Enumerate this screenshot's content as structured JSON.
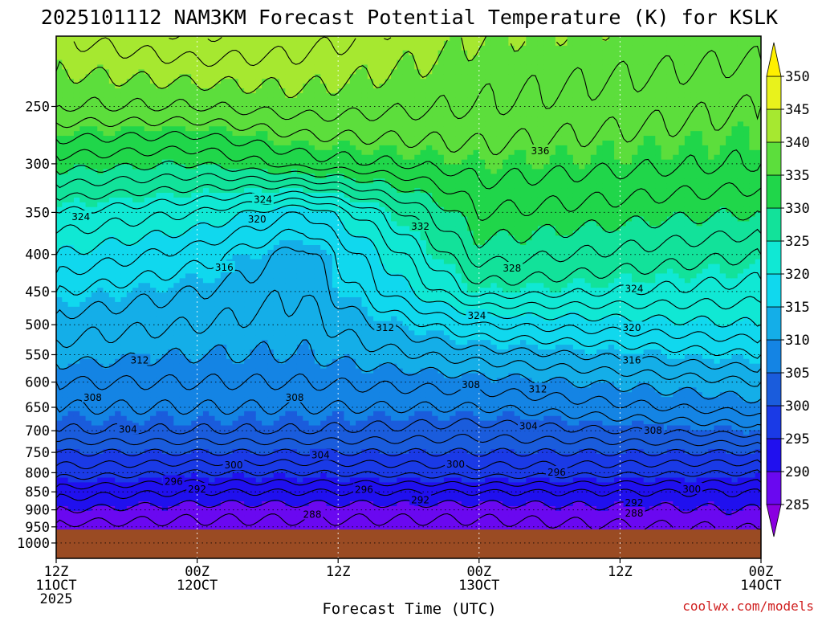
{
  "chart_data": {
    "type": "heatmap",
    "title": "2025101112 NAM3KM Forecast Potential Temperature (K) for KSLK",
    "xlabel": "Forecast Time (UTC)",
    "x_ticks": [
      {
        "hour": 0,
        "line1": "12Z",
        "line2": "11OCT",
        "line3": "2025"
      },
      {
        "hour": 12,
        "line1": "00Z",
        "line2": "12OCT",
        "line3": ""
      },
      {
        "hour": 24,
        "line1": "12Z",
        "line2": "",
        "line3": ""
      },
      {
        "hour": 36,
        "line1": "00Z",
        "line2": "13OCT",
        "line3": ""
      },
      {
        "hour": 48,
        "line1": "12Z",
        "line2": "",
        "line3": ""
      },
      {
        "hour": 60,
        "line1": "00Z",
        "line2": "14OCT",
        "line3": ""
      }
    ],
    "x_range_hours": [
      0,
      60
    ],
    "y_ticks": [
      250,
      300,
      350,
      400,
      450,
      500,
      550,
      600,
      650,
      700,
      750,
      800,
      850,
      900,
      950,
      1000
    ],
    "y_range_hpa": [
      200,
      1050
    ],
    "y_scale": "log-pressure",
    "surface_pressure_hpa": 958,
    "surface_color": "#9a4b23",
    "grid": "dotted",
    "colorbar": {
      "levels": [
        285,
        290,
        295,
        300,
        305,
        310,
        315,
        320,
        325,
        330,
        335,
        340,
        345,
        350
      ],
      "colors": [
        "#8a00e0",
        "#6a08f0",
        "#2010ee",
        "#1a3ae6",
        "#1a5cdc",
        "#1484e4",
        "#14aee8",
        "#10d8ee",
        "#10e8d4",
        "#12e29a",
        "#20d64a",
        "#5cde3c",
        "#a6e830",
        "#e8f21c",
        "#fff000"
      ],
      "tick_labels": [
        "285",
        "290",
        "295",
        "300",
        "305",
        "310",
        "315",
        "320",
        "325",
        "330",
        "335",
        "340",
        "345",
        "350"
      ]
    },
    "profiles": [
      {
        "hour": 0,
        "pressure_hpa": [
          958,
          900,
          850,
          800,
          750,
          700,
          650,
          600,
          550,
          500,
          450,
          400,
          350,
          300,
          250,
          200
        ],
        "theta_k": [
          287,
          290,
          293,
          297,
          300,
          304,
          306,
          308,
          311,
          313,
          316,
          320,
          324,
          331,
          338,
          342
        ]
      },
      {
        "hour": 12,
        "pressure_hpa": [
          958,
          900,
          850,
          800,
          750,
          700,
          650,
          600,
          550,
          500,
          450,
          400,
          350,
          300,
          250,
          200
        ],
        "theta_k": [
          287,
          289,
          292,
          296,
          300,
          304,
          306,
          308,
          310,
          312,
          314,
          317,
          322,
          330,
          338,
          344
        ]
      },
      {
        "hour": 21,
        "pressure_hpa": [
          958,
          900,
          850,
          800,
          750,
          700,
          650,
          600,
          550,
          500,
          450,
          400,
          350,
          300,
          250,
          200
        ],
        "theta_k": [
          287,
          289,
          292,
          296,
          300,
          304,
          306,
          308,
          310,
          311,
          312,
          313,
          318,
          333,
          339,
          343
        ]
      },
      {
        "hour": 36,
        "pressure_hpa": [
          958,
          900,
          850,
          800,
          750,
          700,
          650,
          600,
          550,
          500,
          450,
          400,
          350,
          300,
          250,
          200
        ],
        "theta_k": [
          287,
          289,
          292,
          297,
          300,
          303,
          306,
          309,
          313,
          318,
          325,
          329,
          332,
          335,
          338,
          340
        ]
      },
      {
        "hour": 60,
        "pressure_hpa": [
          958,
          900,
          850,
          800,
          750,
          700,
          650,
          600,
          550,
          500,
          450,
          400,
          350,
          300,
          250,
          200
        ],
        "theta_k": [
          288,
          290,
          292,
          296,
          300,
          305,
          309,
          312,
          316,
          320,
          323,
          326,
          330,
          334,
          336,
          339
        ]
      }
    ],
    "contour_interval_k": 2,
    "contour_labels": [
      {
        "text": "324",
        "hour": 2.1,
        "hpa": 355
      },
      {
        "text": "324",
        "hour": 17.6,
        "hpa": 336
      },
      {
        "text": "320",
        "hour": 17.1,
        "hpa": 358
      },
      {
        "text": "316",
        "hour": 14.3,
        "hpa": 417
      },
      {
        "text": "332",
        "hour": 31.0,
        "hpa": 366
      },
      {
        "text": "336",
        "hour": 41.2,
        "hpa": 288
      },
      {
        "text": "328",
        "hour": 38.8,
        "hpa": 418
      },
      {
        "text": "324",
        "hour": 49.2,
        "hpa": 446
      },
      {
        "text": "324",
        "hour": 35.8,
        "hpa": 486
      },
      {
        "text": "320",
        "hour": 49.0,
        "hpa": 505
      },
      {
        "text": "316",
        "hour": 49.0,
        "hpa": 560
      },
      {
        "text": "312",
        "hour": 28.0,
        "hpa": 505
      },
      {
        "text": "312",
        "hour": 7.1,
        "hpa": 560
      },
      {
        "text": "312",
        "hour": 41.0,
        "hpa": 614
      },
      {
        "text": "308",
        "hour": 3.1,
        "hpa": 630
      },
      {
        "text": "308",
        "hour": 20.3,
        "hpa": 630
      },
      {
        "text": "308",
        "hour": 35.3,
        "hpa": 605
      },
      {
        "text": "308",
        "hour": 50.8,
        "hpa": 700
      },
      {
        "text": "304",
        "hour": 6.1,
        "hpa": 697
      },
      {
        "text": "304",
        "hour": 22.5,
        "hpa": 757
      },
      {
        "text": "304",
        "hour": 40.2,
        "hpa": 690
      },
      {
        "text": "300",
        "hour": 15.1,
        "hpa": 781
      },
      {
        "text": "300",
        "hour": 34.0,
        "hpa": 779
      },
      {
        "text": "300",
        "hour": 54.1,
        "hpa": 843
      },
      {
        "text": "296",
        "hour": 10.0,
        "hpa": 823
      },
      {
        "text": "296",
        "hour": 26.2,
        "hpa": 844
      },
      {
        "text": "296",
        "hour": 42.6,
        "hpa": 799
      },
      {
        "text": "292",
        "hour": 12.0,
        "hpa": 843
      },
      {
        "text": "292",
        "hour": 31.0,
        "hpa": 873
      },
      {
        "text": "292",
        "hour": 49.2,
        "hpa": 881
      },
      {
        "text": "288",
        "hour": 21.8,
        "hpa": 914
      },
      {
        "text": "288",
        "hour": 49.2,
        "hpa": 910
      }
    ]
  },
  "credit": "coolwx.com/models"
}
